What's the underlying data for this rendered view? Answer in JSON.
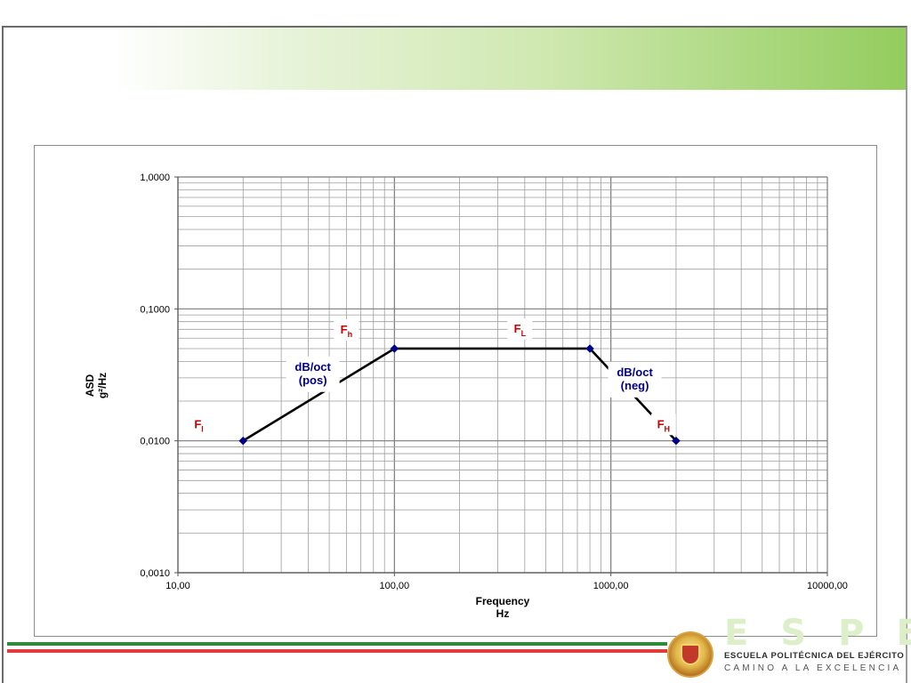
{
  "chart_data": {
    "type": "line",
    "xscale": "log",
    "yscale": "log",
    "xlim": [
      10,
      10000
    ],
    "ylim": [
      0.001,
      1
    ],
    "xlabel": [
      "Frequency",
      "Hz"
    ],
    "ylabel": [
      "ASD",
      "g²/Hz"
    ],
    "x_ticks": [
      {
        "value": 10,
        "label": "10,00"
      },
      {
        "value": 100,
        "label": "100,00"
      },
      {
        "value": 1000,
        "label": "1000,00"
      },
      {
        "value": 10000,
        "label": "10000,00"
      }
    ],
    "y_ticks": [
      {
        "value": 0.001,
        "label": "0,0010"
      },
      {
        "value": 0.01,
        "label": "0,0100"
      },
      {
        "value": 0.1,
        "label": "0,1000"
      },
      {
        "value": 1,
        "label": "1,0000"
      }
    ],
    "grid": true,
    "series": [
      {
        "color": "#000000",
        "marker_color": "#00008b",
        "points": [
          {
            "x": 20,
            "y": 0.01
          },
          {
            "x": 100,
            "y": 0.05
          },
          {
            "x": 800,
            "y": 0.05
          },
          {
            "x": 2000,
            "y": 0.01
          }
        ]
      }
    ],
    "annotations": [
      {
        "id": "fl-low",
        "main": "F",
        "sub": "l",
        "x": 12.5,
        "y": 0.0125,
        "color": "#cc0000"
      },
      {
        "id": "fh-low",
        "main": "F",
        "sub": "h",
        "x": 60,
        "y": 0.065,
        "color": "#cc0000"
      },
      {
        "id": "fl-high",
        "main": "F",
        "sub": "L",
        "x": 380,
        "y": 0.066,
        "color": "#cc0000"
      },
      {
        "id": "fh-high",
        "main": "F",
        "sub": "H",
        "x": 1750,
        "y": 0.0125,
        "color": "#cc0000"
      },
      {
        "id": "slope-pos",
        "lines": [
          "dB/oct",
          "(pos)"
        ],
        "x": 42,
        "y": 0.033,
        "color": "#00008b"
      },
      {
        "id": "slope-neg",
        "lines": [
          "dB/oct",
          "(neg)"
        ],
        "x": 1290,
        "y": 0.03,
        "color": "#00008b"
      }
    ]
  },
  "footer": {
    "stripe_colors": [
      "#2e8b3a",
      "#e03a3a"
    ],
    "logo": {
      "letters": "ESPE",
      "line1": "ESCUELA POLITÉCNICA DEL EJÉRCITO",
      "line2": "CAMINO A LA EXCELENCIA"
    }
  }
}
